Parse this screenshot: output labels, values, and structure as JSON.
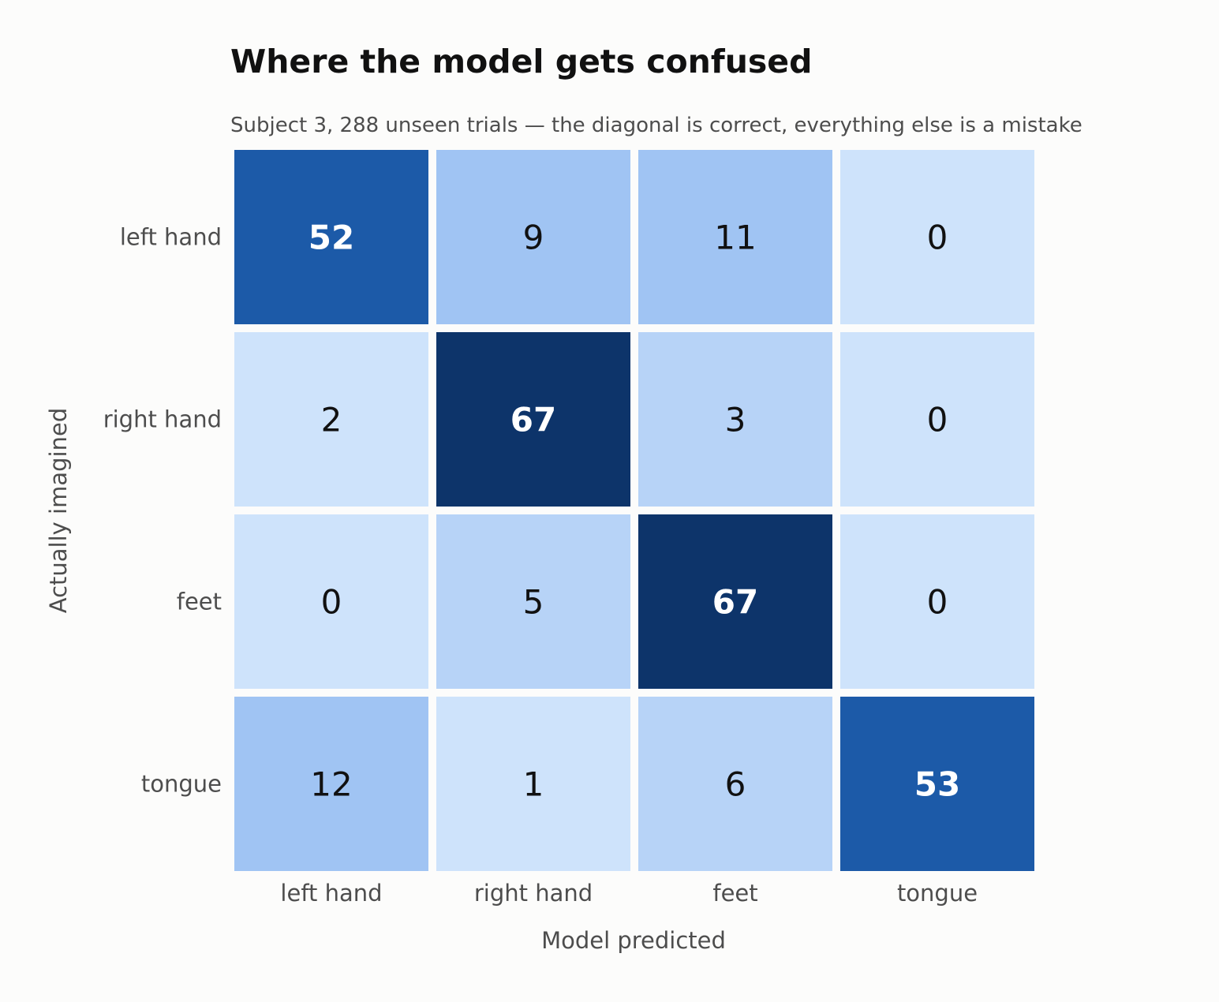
{
  "chart_data": {
    "type": "heatmap",
    "title": "Where the model gets confused",
    "subtitle": "Subject 3, 288 unseen trials — the diagonal is correct, everything else is a mistake",
    "xlabel": "Model predicted",
    "ylabel": "Actually imagined",
    "x_categories": [
      "left hand",
      "right hand",
      "feet",
      "tongue"
    ],
    "y_categories": [
      "left hand",
      "right hand",
      "feet",
      "tongue"
    ],
    "values": [
      [
        52,
        9,
        11,
        0
      ],
      [
        2,
        67,
        3,
        0
      ],
      [
        0,
        5,
        67,
        0
      ],
      [
        12,
        1,
        6,
        53
      ]
    ],
    "cell_colors": [
      [
        "#1c5aa8",
        "#a0c4f3",
        "#a0c4f3",
        "#cee3fb"
      ],
      [
        "#cee3fb",
        "#0d346a",
        "#b7d3f7",
        "#cee3fb"
      ],
      [
        "#cee3fb",
        "#b7d3f7",
        "#0d346a",
        "#cee3fb"
      ],
      [
        "#a0c4f3",
        "#cee3fb",
        "#b7d3f7",
        "#1c5aa8"
      ]
    ],
    "colors": {
      "background": "#fcfcfb",
      "cell_border": "#ffffff",
      "highlight_text": "#ffffff",
      "normal_text": "#111111"
    },
    "highlight": "diagonal values shown in bold white",
    "grid": false,
    "legend": "none"
  }
}
